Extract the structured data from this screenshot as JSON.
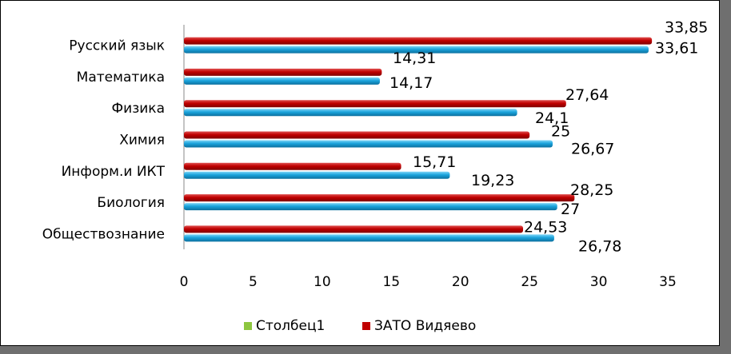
{
  "chart_data": {
    "type": "bar",
    "orientation": "horizontal",
    "categories": [
      "Русский язык",
      "Математика",
      "Физика",
      "Химия",
      "Информ.и ИКТ",
      "Биология",
      "Обществознание"
    ],
    "series": [
      {
        "name": "ЗАТО Видяево",
        "color": "#c00000",
        "values": [
          33.85,
          14.31,
          27.64,
          25,
          15.71,
          28.25,
          24.53
        ],
        "labels": [
          "33,85",
          "14,31",
          "27,64",
          "25",
          "15,71",
          "28,25",
          "24,53"
        ]
      },
      {
        "name": "",
        "color": "#1aa3dc",
        "values": [
          33.61,
          14.17,
          24.1,
          26.67,
          19.23,
          27,
          26.78
        ],
        "labels": [
          "33,61",
          "14,17",
          "24,1",
          "26,67",
          "19,23",
          "27",
          "26,78"
        ]
      }
    ],
    "legend": [
      {
        "name": "Столбец1",
        "color": "#8dc63f"
      },
      {
        "name": "ЗАТО Видяево",
        "color": "#c00000"
      }
    ],
    "legend_position": "bottom",
    "xlim": [
      0,
      35
    ],
    "xticks": [
      "0",
      "5",
      "10",
      "15",
      "20",
      "25",
      "30",
      "35"
    ],
    "grid": false,
    "title": "",
    "xlabel": "",
    "ylabel": ""
  }
}
